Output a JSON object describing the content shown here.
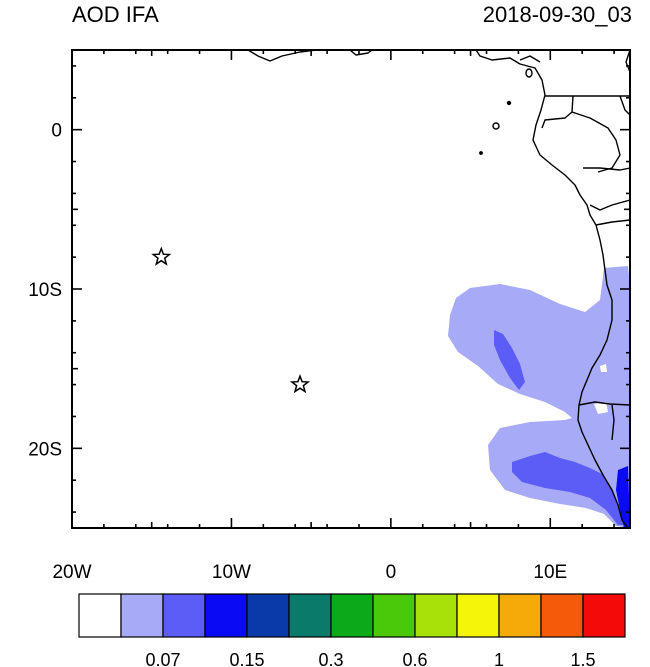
{
  "title": "AOD IFA",
  "timestamp": "2018-09-30_03",
  "x_axis": {
    "ticks": [
      {
        "lon": -20,
        "label": "20W"
      },
      {
        "lon": -10,
        "label": "10W"
      },
      {
        "lon": 0,
        "label": "0"
      },
      {
        "lon": 10,
        "label": "10E"
      }
    ],
    "range": [
      -20,
      15
    ]
  },
  "y_axis": {
    "ticks": [
      {
        "lat": 0,
        "label": "0"
      },
      {
        "lat": -10,
        "label": "10S"
      },
      {
        "lat": -20,
        "label": "20S"
      }
    ],
    "range": [
      -25,
      5
    ]
  },
  "markers": [
    {
      "lon": -14.4,
      "lat": -8.0,
      "symbol": "star"
    },
    {
      "lon": -5.7,
      "lat": -16.0,
      "symbol": "star"
    }
  ],
  "colorbar": {
    "colors": [
      "#ffffff",
      "#a7aaf7",
      "#5c5cf7",
      "#0a0af5",
      "#0a3aaa",
      "#0a7a6a",
      "#0aaa1a",
      "#4ac80a",
      "#a8e00a",
      "#f5f50a",
      "#f5aa0a",
      "#f55a0a",
      "#f50a0a"
    ],
    "labels": [
      {
        "value": "0.07",
        "after_index": 1
      },
      {
        "value": "0.15",
        "after_index": 3
      },
      {
        "value": "0.3",
        "after_index": 5
      },
      {
        "value": "0.6",
        "after_index": 7
      },
      {
        "value": "1",
        "after_index": 9
      },
      {
        "value": "1.5",
        "after_index": 11
      }
    ]
  }
}
